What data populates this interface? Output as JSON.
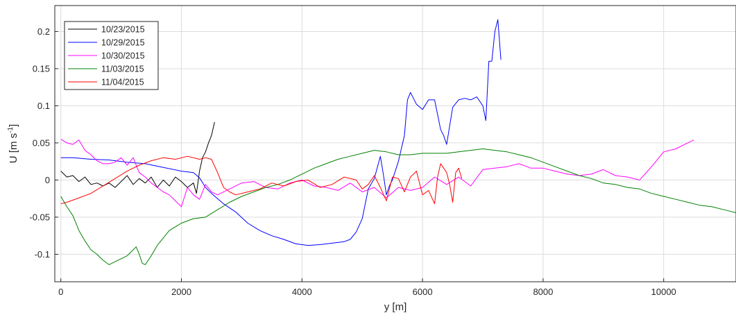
{
  "chart_data": {
    "type": "line",
    "title": "",
    "xlabel": "y [m]",
    "ylabel": "U [m s",
    "ylabel_superscript": "-1",
    "ylabel_suffix": "]",
    "xlim": [
      -100,
      11200
    ],
    "ylim": [
      -0.137,
      0.235
    ],
    "xticks": [
      0,
      2000,
      4000,
      6000,
      8000,
      10000
    ],
    "yticks": [
      -0.1,
      -0.05,
      0,
      0.05,
      0.1,
      0.15,
      0.2
    ],
    "ytick_labels": [
      "-0.1",
      "-0.05",
      "0",
      "0.05",
      "0.1",
      "0.15",
      "0.2"
    ],
    "grid": true,
    "legend_position": "top-left",
    "series": [
      {
        "name": "10/23/2015",
        "color": "#000000",
        "x": [
          0,
          100,
          200,
          300,
          400,
          500,
          600,
          700,
          800,
          900,
          1000,
          1100,
          1200,
          1300,
          1400,
          1500,
          1600,
          1700,
          1800,
          1900,
          2000,
          2100,
          2200,
          2250,
          2300,
          2350,
          2400,
          2450,
          2500,
          2550
        ],
        "y": [
          0.012,
          0.004,
          0.006,
          -0.002,
          0.004,
          -0.006,
          -0.004,
          -0.008,
          -0.004,
          -0.01,
          -0.002,
          0.006,
          -0.006,
          0.002,
          -0.004,
          0.004,
          -0.01,
          0.0,
          -0.008,
          0.004,
          -0.002,
          -0.01,
          -0.004,
          -0.018,
          0.012,
          0.03,
          0.038,
          0.05,
          0.06,
          0.078
        ]
      },
      {
        "name": "10/29/2015",
        "color": "#0000ff",
        "x": [
          0,
          200,
          500,
          800,
          1100,
          1400,
          1700,
          2000,
          2200,
          2300,
          2400,
          2500,
          2700,
          2900,
          3100,
          3300,
          3500,
          3700,
          3900,
          4100,
          4300,
          4500,
          4700,
          4800,
          4900,
          5000,
          5100,
          5200,
          5300,
          5350,
          5400,
          5450,
          5500,
          5600,
          5700,
          5750,
          5800,
          5900,
          6000,
          6100,
          6200,
          6300,
          6350,
          6400,
          6500,
          6600,
          6700,
          6800,
          6900,
          7000,
          7050,
          7100,
          7150,
          7200,
          7250,
          7300
        ],
        "y": [
          0.03,
          0.03,
          0.028,
          0.027,
          0.024,
          0.022,
          0.017,
          0.012,
          0.01,
          0.003,
          -0.01,
          -0.018,
          -0.032,
          -0.043,
          -0.058,
          -0.068,
          -0.075,
          -0.08,
          -0.086,
          -0.088,
          -0.087,
          -0.085,
          -0.083,
          -0.08,
          -0.07,
          -0.052,
          -0.012,
          0.002,
          0.032,
          0.008,
          -0.02,
          -0.008,
          0.0,
          0.025,
          0.06,
          0.108,
          0.118,
          0.102,
          0.095,
          0.108,
          0.108,
          0.068,
          0.06,
          0.048,
          0.098,
          0.108,
          0.11,
          0.108,
          0.112,
          0.1,
          0.08,
          0.16,
          0.16,
          0.2,
          0.216,
          0.162
        ]
      },
      {
        "name": "10/30/2015",
        "color": "#ff00ff",
        "x": [
          0,
          100,
          200,
          300,
          400,
          500,
          600,
          700,
          800,
          900,
          1000,
          1100,
          1200,
          1300,
          1400,
          1500,
          1600,
          1700,
          1800,
          1900,
          2000,
          2100,
          2200,
          2300,
          2400,
          2500,
          2600,
          2800,
          3000,
          3200,
          3400,
          3600,
          3800,
          4000,
          4200,
          4400,
          4600,
          4800,
          5000,
          5200,
          5400,
          5600,
          5800,
          6000,
          6200,
          6400,
          6600,
          6800,
          7000,
          7200,
          7400,
          7600,
          7800,
          8000,
          8200,
          8400,
          8600,
          8800,
          9000,
          9200,
          9400,
          9600,
          9800,
          10000,
          10200,
          10400,
          10500
        ],
        "y": [
          0.055,
          0.05,
          0.048,
          0.054,
          0.04,
          0.034,
          0.026,
          0.022,
          0.022,
          0.024,
          0.03,
          0.02,
          0.03,
          0.01,
          0.004,
          -0.004,
          -0.01,
          -0.016,
          -0.02,
          -0.028,
          -0.036,
          -0.01,
          -0.02,
          -0.026,
          -0.006,
          -0.016,
          -0.02,
          -0.012,
          -0.004,
          -0.002,
          -0.01,
          -0.012,
          -0.004,
          0.0,
          -0.008,
          -0.01,
          -0.014,
          -0.004,
          -0.016,
          -0.01,
          -0.024,
          -0.01,
          -0.014,
          -0.01,
          0.004,
          -0.006,
          0.004,
          -0.008,
          0.014,
          0.016,
          0.018,
          0.022,
          0.016,
          0.016,
          0.012,
          0.008,
          0.006,
          0.008,
          0.014,
          0.006,
          0.004,
          0.0,
          0.018,
          0.038,
          0.042,
          0.05,
          0.054
        ]
      },
      {
        "name": "11/03/2015",
        "color": "#008000",
        "x": [
          0,
          100,
          200,
          300,
          400,
          500,
          600,
          700,
          800,
          900,
          1000,
          1100,
          1200,
          1250,
          1300,
          1350,
          1400,
          1500,
          1600,
          1800,
          2000,
          2200,
          2400,
          2600,
          2800,
          3000,
          3200,
          3400,
          3600,
          3800,
          4000,
          4200,
          4400,
          4600,
          4800,
          5000,
          5200,
          5400,
          5600,
          5800,
          6000,
          6200,
          6400,
          6600,
          6800,
          7000,
          7200,
          7400,
          7600,
          7800,
          8000,
          8200,
          8400,
          8600,
          8800,
          9000,
          9200,
          9400,
          9600,
          9800,
          10000,
          10200,
          10400,
          10600,
          10800,
          11000,
          11200
        ],
        "y": [
          -0.022,
          -0.036,
          -0.048,
          -0.068,
          -0.082,
          -0.094,
          -0.1,
          -0.108,
          -0.114,
          -0.11,
          -0.106,
          -0.102,
          -0.094,
          -0.09,
          -0.1,
          -0.112,
          -0.114,
          -0.102,
          -0.088,
          -0.068,
          -0.058,
          -0.052,
          -0.05,
          -0.04,
          -0.03,
          -0.022,
          -0.016,
          -0.01,
          -0.006,
          0.0,
          0.008,
          0.016,
          0.022,
          0.028,
          0.032,
          0.036,
          0.04,
          0.038,
          0.034,
          0.034,
          0.036,
          0.036,
          0.036,
          0.038,
          0.04,
          0.042,
          0.04,
          0.038,
          0.034,
          0.03,
          0.024,
          0.018,
          0.012,
          0.006,
          0.002,
          -0.004,
          -0.006,
          -0.01,
          -0.012,
          -0.018,
          -0.022,
          -0.026,
          -0.03,
          -0.034,
          -0.036,
          -0.04,
          -0.044
        ]
      },
      {
        "name": "11/04/2015",
        "color": "#ff0000",
        "x": [
          0,
          100,
          300,
          500,
          700,
          900,
          1100,
          1300,
          1500,
          1700,
          1900,
          2100,
          2300,
          2400,
          2500,
          2600,
          2700,
          2800,
          2900,
          3100,
          3300,
          3500,
          3700,
          3900,
          4100,
          4300,
          4500,
          4700,
          4900,
          5000,
          5100,
          5200,
          5300,
          5400,
          5500,
          5600,
          5700,
          5800,
          5900,
          6000,
          6100,
          6200,
          6250,
          6300,
          6400,
          6450,
          6500,
          6550,
          6600,
          6650
        ],
        "y": [
          -0.032,
          -0.03,
          -0.024,
          -0.018,
          -0.008,
          0.002,
          0.012,
          0.02,
          0.026,
          0.03,
          0.028,
          0.032,
          0.028,
          0.03,
          0.028,
          0.01,
          -0.01,
          -0.016,
          -0.02,
          -0.016,
          -0.012,
          -0.004,
          -0.008,
          -0.002,
          0.0,
          -0.01,
          -0.006,
          0.004,
          0.0,
          -0.012,
          -0.006,
          0.006,
          -0.01,
          -0.028,
          0.004,
          0.002,
          -0.016,
          0.004,
          0.012,
          -0.02,
          -0.014,
          -0.032,
          0.004,
          0.022,
          0.01,
          -0.006,
          -0.03,
          0.01,
          0.016,
          0.002
        ]
      }
    ]
  }
}
